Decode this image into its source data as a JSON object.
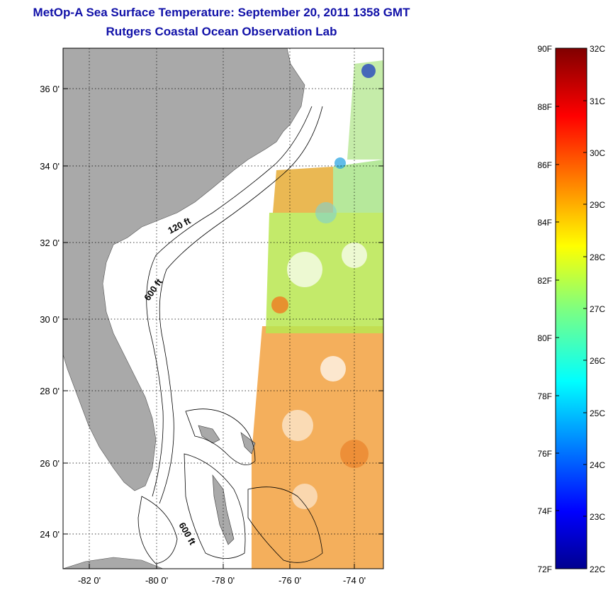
{
  "title": "MetOp-A Sea Surface Temperature:  September 20, 2011 1358 GMT",
  "subtitle": "Rutgers Coastal Ocean Observation Lab",
  "map": {
    "lat_ticks": [
      "36 0'",
      "34 0'",
      "32 0'",
      "30 0'",
      "28 0'",
      "26 0'",
      "24 0'"
    ],
    "lon_ticks": [
      "-82 0'",
      "-80 0'",
      "-78 0'",
      "-76 0'",
      "-74 0'"
    ],
    "isobath_labels": [
      "120 ft",
      "600 ft",
      "600 ft"
    ],
    "land_color": "#a9a9a9",
    "grid": "dotted"
  },
  "colorbar": {
    "f_labels": [
      "90F",
      "88F",
      "86F",
      "84F",
      "82F",
      "80F",
      "78F",
      "76F",
      "74F",
      "72F"
    ],
    "c_labels": [
      "32C",
      "31C",
      "30C",
      "29C",
      "28C",
      "27C",
      "26C",
      "25C",
      "24C",
      "23C",
      "22C"
    ],
    "colormap": "jet",
    "range_c": [
      22,
      32
    ]
  }
}
